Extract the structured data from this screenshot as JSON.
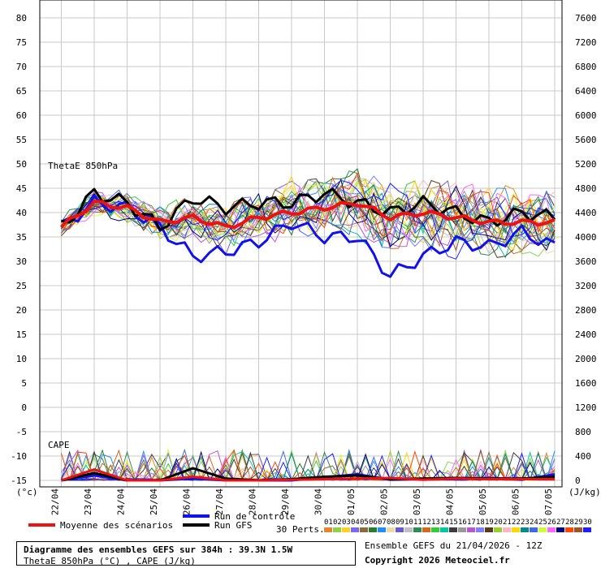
{
  "left_axis_unit": "(°c)",
  "right_axis_unit": "(J/kg)",
  "label_thetae": "ThetaE 850hPa",
  "label_cape": "CAPE",
  "legend": {
    "mean": "Moyenne des scénarios",
    "control": "Run de contrôle",
    "gfs": "Run GFS",
    "perts": "30 Perts."
  },
  "member_numbers": [
    "01",
    "02",
    "03",
    "04",
    "05",
    "06",
    "07",
    "08",
    "09",
    "10",
    "11",
    "12",
    "13",
    "14",
    "15",
    "16",
    "17",
    "18",
    "19",
    "20",
    "21",
    "22",
    "23",
    "24",
    "25",
    "26",
    "27",
    "28",
    "29",
    "30"
  ],
  "member_colors": [
    "#e8842c",
    "#8fd14f",
    "#ffd21f",
    "#7b68ee",
    "#8b6b3d",
    "#2a7d2e",
    "#1f8fff",
    "#f0d9a8",
    "#6a5acd",
    "#c0c0c0",
    "#2e8b57",
    "#d2691e",
    "#32cd32",
    "#00c8a0",
    "#3c3c3c",
    "#999999",
    "#ba55d3",
    "#7f7fff",
    "#5b3a1a",
    "#9acd32",
    "#ffb6c1",
    "#ffd700",
    "#008b8b",
    "#4169e1",
    "#ccff33",
    "#ff66ff",
    "#000080",
    "#ff4500",
    "#a0522d",
    "#1e1eff"
  ],
  "info": {
    "title": "Diagramme des ensembles GEFS sur 384h : 39.3N 1.5W",
    "subtitle": "ThetaE 850hPa (°C) , CAPE (J/kg)",
    "run": "Ensemble GEFS du 21/04/2026 - 12Z",
    "copyright": "Copyright 2026 Meteociel.fr"
  },
  "chart_data": {
    "type": "line",
    "x": [
      "22/04",
      "23/04",
      "24/04",
      "25/04",
      "26/04",
      "27/04",
      "28/04",
      "29/04",
      "30/04",
      "01/05",
      "02/05",
      "03/05",
      "04/05",
      "05/05",
      "06/05",
      "07/05"
    ],
    "y_left_ticks": [
      80,
      75,
      70,
      65,
      60,
      55,
      50,
      45,
      40,
      35,
      30,
      25,
      20,
      15,
      10,
      5,
      0,
      -5,
      -10,
      -15
    ],
    "y_right_ticks": [
      7600,
      7200,
      6800,
      6400,
      6000,
      5600,
      5200,
      4800,
      4400,
      4000,
      3600,
      3200,
      2800,
      2400,
      2000,
      1600,
      1200,
      800,
      400,
      0
    ],
    "ylim_left": [
      -15,
      80
    ],
    "ylim_right": [
      0,
      7600
    ],
    "grid": true,
    "series": [
      {
        "name": "Moyenne des scénarios",
        "color": "#ee1111",
        "values": [
          37,
          42,
          41,
          38,
          39,
          37,
          39,
          40,
          41,
          42,
          39,
          40,
          39,
          38,
          38,
          38
        ]
      },
      {
        "name": "Run de contrôle",
        "color": "#1111ee",
        "values": [
          37,
          42,
          41,
          37,
          31,
          32,
          34,
          38,
          35,
          35,
          27,
          31,
          34,
          33,
          36,
          33
        ]
      },
      {
        "name": "Run GFS",
        "color": "#000000",
        "values": [
          37,
          44,
          42,
          37,
          43,
          41,
          42,
          42,
          44,
          42,
          40,
          42,
          40,
          38,
          40,
          39
        ]
      }
    ],
    "cape_series": [
      {
        "name": "Moyenne des scénarios",
        "color": "#ee1111",
        "values": [
          0,
          180,
          0,
          0,
          60,
          0,
          0,
          10,
          20,
          30,
          40,
          10,
          30,
          20,
          20,
          20
        ]
      },
      {
        "name": "Run de contrôle",
        "color": "#1111ee",
        "values": [
          0,
          80,
          0,
          0,
          30,
          0,
          0,
          0,
          50,
          100,
          10,
          20,
          20,
          40,
          10,
          100
        ]
      },
      {
        "name": "Run GFS",
        "color": "#000000",
        "values": [
          0,
          120,
          0,
          0,
          200,
          30,
          0,
          20,
          60,
          80,
          20,
          30,
          40,
          30,
          30,
          60
        ]
      }
    ]
  }
}
